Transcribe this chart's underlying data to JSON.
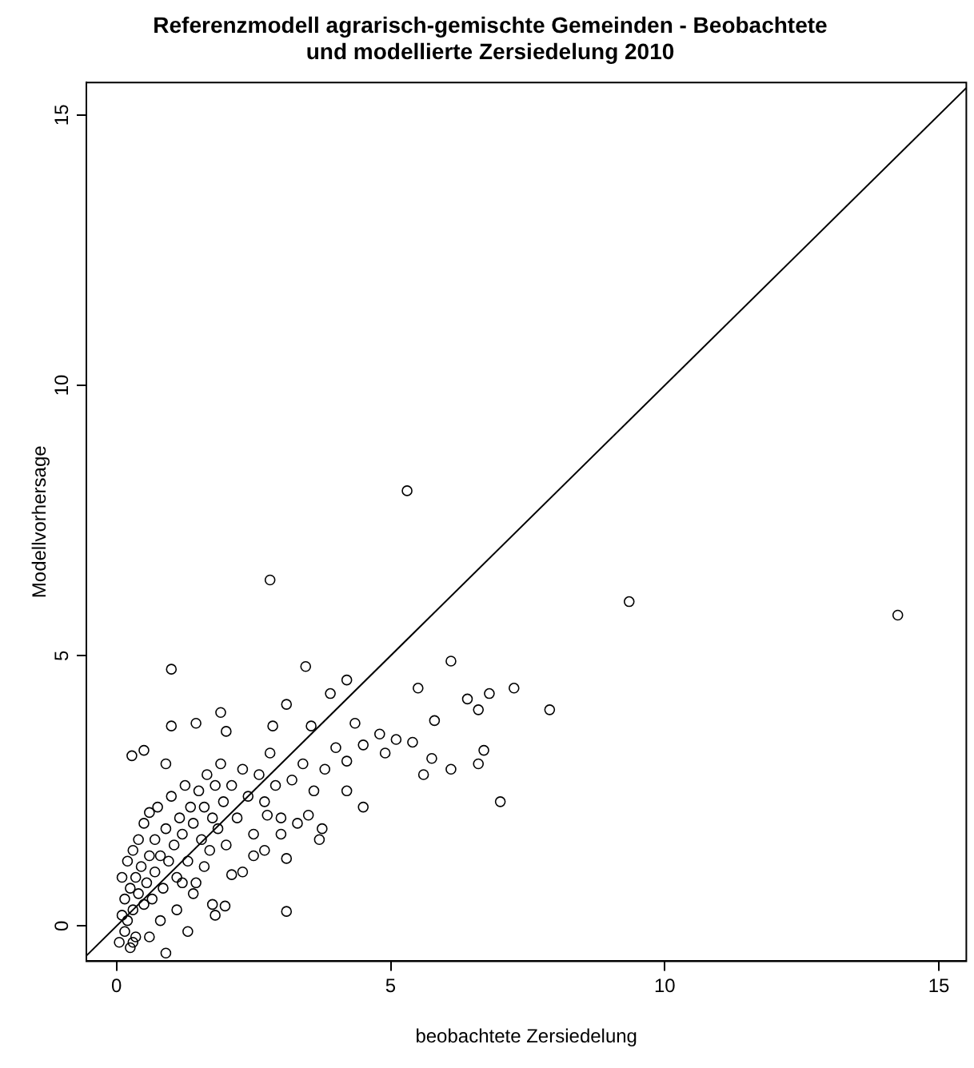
{
  "chart_data": {
    "type": "scatter",
    "title": [
      "Referenzmodell agrarisch-gemischte Gemeinden - Beobachtete",
      "und modellierte Zersiedelung 2010"
    ],
    "xlabel": "beobachtete Zersiedelung",
    "ylabel": "Modellvorhersage",
    "xlim": [
      -0.55,
      15.5
    ],
    "ylim": [
      -0.65,
      15.6
    ],
    "xticks": [
      0,
      5,
      10,
      15
    ],
    "yticks": [
      0,
      5,
      10,
      15
    ],
    "grid": false,
    "legend": false,
    "series": [
      {
        "type": "scatter",
        "marker": "circle",
        "color": "#000000",
        "x": [
          5.3,
          2.8,
          9.35,
          14.25,
          1.0,
          3.45,
          6.1,
          4.2,
          7.9,
          7.25,
          7.0,
          3.1,
          1.3,
          0.9,
          6.4,
          6.6,
          6.8,
          6.7,
          6.6,
          6.1,
          5.75,
          5.6,
          5.4,
          5.1,
          4.9,
          4.8,
          4.5,
          4.35,
          5.5,
          5.8,
          4.2,
          4.5,
          4.2,
          3.75,
          3.7,
          3.1,
          3.1,
          3.9,
          3.55,
          2.85,
          1.9,
          1.45,
          1.0,
          0.28,
          0.5,
          0.9,
          2.0,
          1.75,
          1.98,
          1.8,
          2.3,
          2.1,
          2.7,
          2.75,
          3.3,
          3.5,
          0.05,
          0.1,
          0.1,
          0.15,
          0.15,
          0.2,
          0.2,
          0.25,
          0.25,
          0.3,
          0.3,
          0.35,
          0.35,
          0.4,
          0.4,
          0.45,
          0.5,
          0.5,
          0.55,
          0.6,
          0.6,
          0.65,
          0.7,
          0.7,
          0.75,
          0.8,
          0.85,
          0.9,
          0.95,
          1.0,
          1.05,
          1.1,
          1.15,
          1.2,
          1.25,
          1.3,
          1.35,
          1.4,
          1.45,
          1.5,
          1.55,
          1.6,
          1.65,
          1.7,
          1.75,
          1.8,
          1.85,
          1.9,
          1.95,
          2.0,
          2.1,
          2.2,
          2.3,
          2.4,
          2.5,
          2.6,
          2.7,
          2.8,
          2.9,
          3.0,
          3.2,
          3.4,
          3.6,
          3.8,
          4.0,
          1.2,
          1.4,
          1.6,
          0.3,
          0.6,
          0.8,
          1.1,
          2.5,
          3.0
        ],
        "values": [
          8.05,
          6.4,
          6.0,
          5.75,
          4.75,
          4.8,
          4.9,
          4.55,
          4.0,
          4.4,
          2.3,
          0.27,
          -0.1,
          -0.5,
          4.2,
          4.0,
          4.3,
          3.25,
          3.0,
          2.9,
          3.1,
          2.8,
          3.4,
          3.45,
          3.2,
          3.55,
          3.35,
          3.75,
          4.4,
          3.8,
          3.05,
          2.2,
          2.5,
          1.8,
          1.6,
          1.25,
          4.1,
          4.3,
          3.7,
          3.7,
          3.95,
          3.75,
          3.7,
          3.15,
          3.25,
          3.0,
          3.6,
          0.4,
          0.37,
          0.2,
          1.0,
          0.95,
          1.4,
          2.05,
          1.9,
          2.05,
          -0.3,
          0.2,
          0.9,
          -0.1,
          0.5,
          1.2,
          0.1,
          0.7,
          -0.4,
          1.4,
          0.3,
          0.9,
          -0.2,
          0.6,
          1.6,
          1.1,
          0.4,
          1.9,
          0.8,
          1.3,
          2.1,
          0.5,
          1.6,
          1.0,
          2.2,
          1.3,
          0.7,
          1.8,
          1.2,
          2.4,
          1.5,
          0.9,
          2.0,
          1.7,
          2.6,
          1.2,
          2.2,
          1.9,
          0.8,
          2.5,
          1.6,
          2.2,
          2.8,
          1.4,
          2.0,
          2.6,
          1.8,
          3.0,
          2.3,
          1.5,
          2.6,
          2.0,
          2.9,
          2.4,
          1.7,
          2.8,
          2.3,
          3.2,
          2.6,
          2.0,
          2.7,
          3.0,
          2.5,
          2.9,
          3.3,
          0.8,
          0.6,
          1.1,
          -0.3,
          -0.2,
          0.1,
          0.3,
          1.3,
          1.7
        ]
      },
      {
        "type": "line",
        "marker": "none",
        "color": "#000000",
        "x": [
          -0.55,
          15.5
        ],
        "values": [
          -0.55,
          15.5
        ]
      }
    ]
  }
}
